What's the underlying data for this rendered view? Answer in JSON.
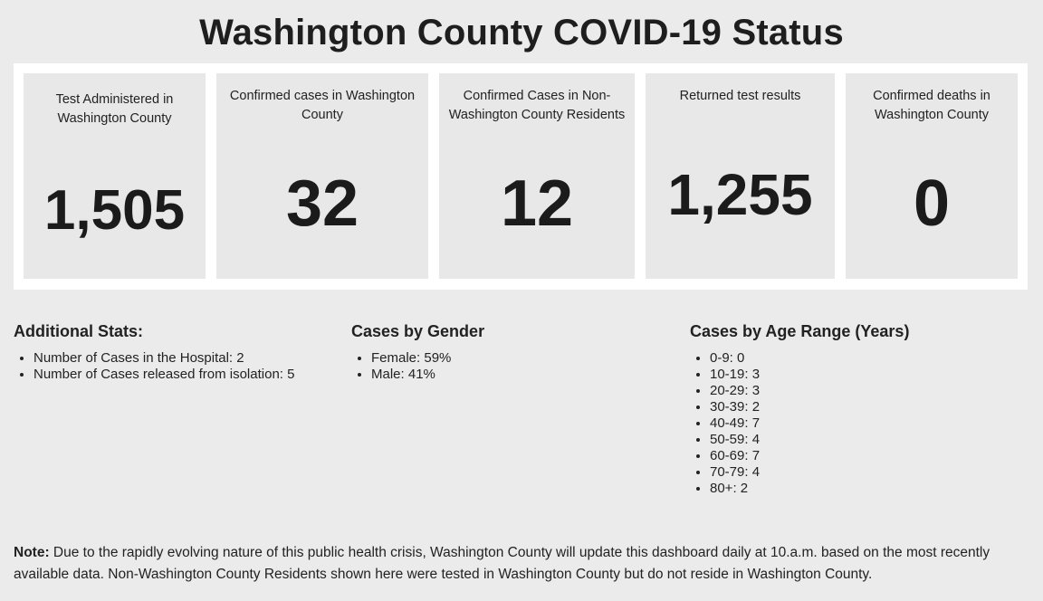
{
  "title": "Washington County COVID-19 Status",
  "cards": [
    {
      "label": "Test Administered in Washington County",
      "value": "1,505"
    },
    {
      "label": "Confirmed cases in Washington County",
      "value": "32"
    },
    {
      "label": "Confirmed Cases in Non-Washington County Residents",
      "value": "12"
    },
    {
      "label": "Returned test results",
      "value": "1,255"
    },
    {
      "label": "Confirmed deaths in Washington County",
      "value": "0"
    }
  ],
  "additional": {
    "heading": "Additional Stats:",
    "items": [
      "Number of Cases in the Hospital: 2",
      "Number of Cases released from isolation: 5"
    ]
  },
  "gender": {
    "heading": "Cases by Gender",
    "items": [
      "Female: 59%",
      "Male: 41%"
    ]
  },
  "age": {
    "heading": "Cases by Age Range (Years)",
    "items": [
      "0-9: 0",
      "10-19: 3",
      "20-29: 3",
      "30-39: 2",
      "40-49: 7",
      "50-59: 4",
      "60-69: 7",
      "70-79: 4",
      "80+: 2"
    ]
  },
  "note": {
    "label": "Note:",
    "text": " Due to the rapidly evolving nature of this public health crisis, Washington County will update this dashboard daily at 10.a.m. based on the most recently available data. Non-Washington County Residents shown here were tested in Washington County but do not reside in Washington County."
  }
}
